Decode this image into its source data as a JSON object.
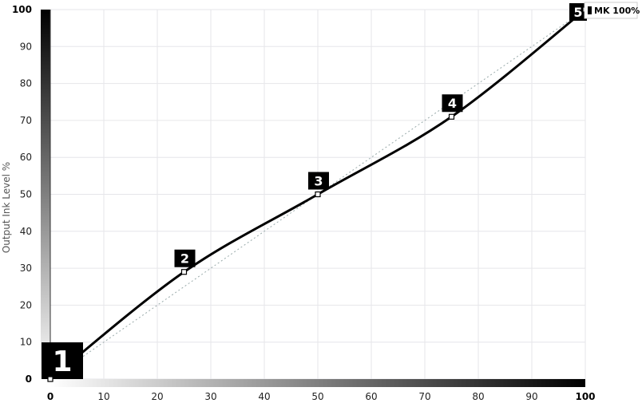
{
  "chart_data": {
    "type": "line",
    "title": "",
    "xlabel": "",
    "ylabel": "Output Ink Level %",
    "xlim": [
      0,
      100
    ],
    "ylim": [
      0,
      100
    ],
    "x_ticks": [
      "0",
      "10",
      "20",
      "30",
      "40",
      "50",
      "60",
      "70",
      "80",
      "90",
      "100"
    ],
    "y_ticks": [
      "0",
      "10",
      "20",
      "30",
      "40",
      "50",
      "60",
      "70",
      "80",
      "90",
      "100"
    ],
    "grid": true,
    "curve": {
      "color": "#000000",
      "points": [
        {
          "label": "1",
          "x": 0,
          "y": 0
        },
        {
          "label": "2",
          "x": 25,
          "y": 29
        },
        {
          "label": "3",
          "x": 50,
          "y": 50
        },
        {
          "label": "4",
          "x": 75,
          "y": 71
        },
        {
          "label": "5",
          "x": 100,
          "y": 100
        }
      ]
    },
    "reference_line": {
      "from": [
        0,
        0
      ],
      "to": [
        100,
        100
      ],
      "style": "dotted"
    },
    "channel_tag": "MK 100%"
  }
}
